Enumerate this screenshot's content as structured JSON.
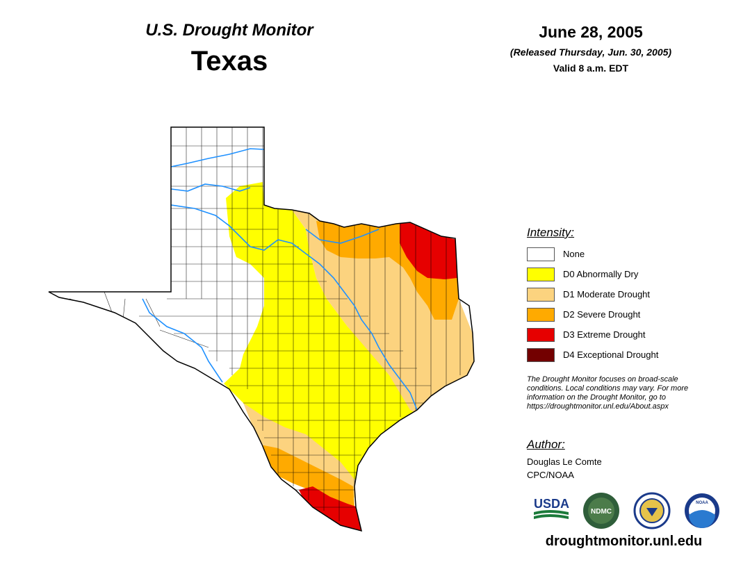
{
  "header": {
    "title": "U.S. Drought Monitor",
    "state": "Texas",
    "date": "June 28, 2005",
    "released": "(Released Thursday, Jun. 30, 2005)",
    "valid": "Valid 8 a.m. EDT"
  },
  "legend": {
    "title": "Intensity:",
    "items": [
      {
        "label": "None",
        "color": "#ffffff"
      },
      {
        "label": "D0 Abnormally Dry",
        "color": "#ffff00"
      },
      {
        "label": "D1 Moderate Drought",
        "color": "#fcd37f"
      },
      {
        "label": "D2 Severe Drought",
        "color": "#ffaa00"
      },
      {
        "label": "D3 Extreme Drought",
        "color": "#e60000"
      },
      {
        "label": "D4 Exceptional Drought",
        "color": "#730000"
      }
    ]
  },
  "note": {
    "lines": [
      "The Drought Monitor focuses on broad-scale",
      "conditions. Local conditions may vary. For more",
      "information on the Drought Monitor, go to",
      "https://droughtmonitor.unl.edu/About.aspx"
    ]
  },
  "author": {
    "title": "Author:",
    "name": "Douglas Le Comte",
    "org": "CPC/NOAA"
  },
  "logos": [
    {
      "name": "usda-logo",
      "text": "USDA"
    },
    {
      "name": "ndmc-logo",
      "text": "NDMC"
    },
    {
      "name": "commerce-seal-logo",
      "text": ""
    },
    {
      "name": "noaa-logo",
      "text": "NOAA"
    }
  ],
  "footer": {
    "url": "droughtmonitor.unl.edu"
  },
  "colors": {
    "river": "#1e90ff",
    "border": "#000000"
  }
}
